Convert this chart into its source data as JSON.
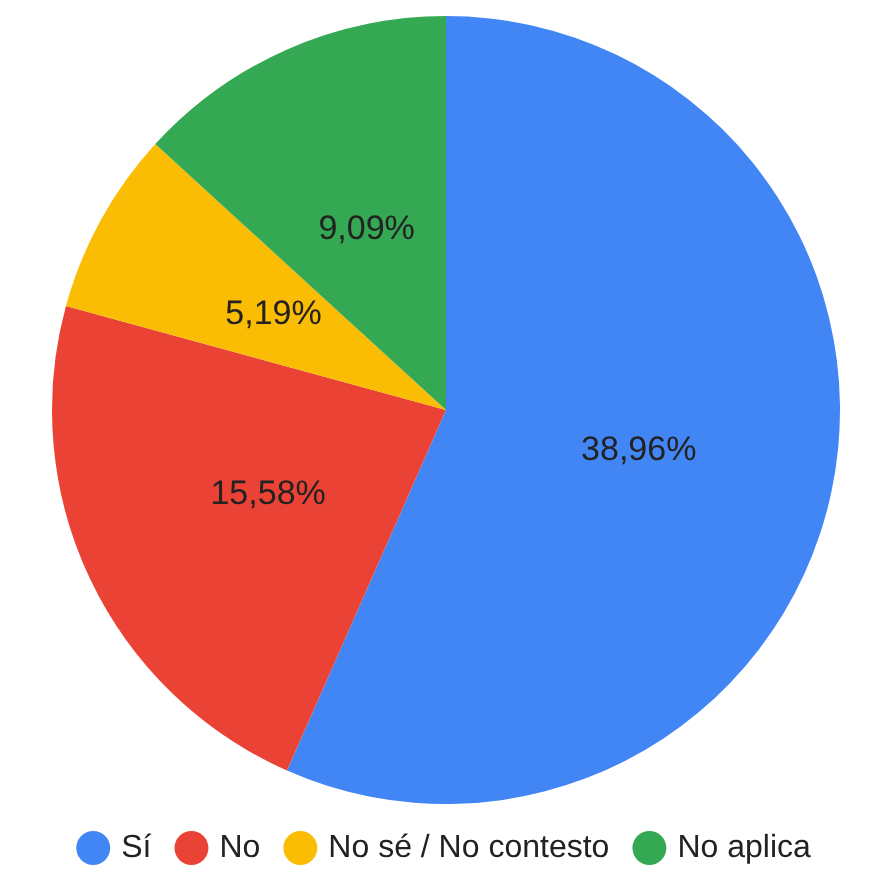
{
  "chart_data": {
    "type": "pie",
    "categories": [
      "Sí",
      "No",
      "No sé / No contesto",
      "No aplica"
    ],
    "values": [
      38.96,
      15.58,
      5.19,
      9.09
    ],
    "colors": [
      "#4285f4",
      "#ea4335",
      "#fbbc04",
      "#34a853"
    ],
    "value_labels": [
      "38,96%",
      "15,58%",
      "5,19%",
      "9,09%"
    ],
    "legend": "bottom"
  }
}
